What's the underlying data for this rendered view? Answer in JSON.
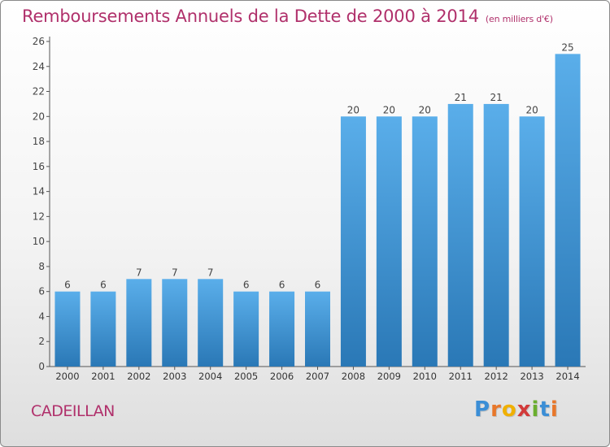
{
  "title": "Remboursements Annuels de la Dette de 2000 à 2014",
  "unit": "(en milliers d'€)",
  "commune": "CADEILLAN",
  "logo": {
    "letters": [
      "P",
      "r",
      "o",
      "x",
      "i",
      "t",
      "i"
    ],
    "colors": [
      "#3b8ed6",
      "#e8772a",
      "#f0b000",
      "#d23a3a",
      "#6aae2e",
      "#3b8ed6",
      "#e8772a"
    ]
  },
  "colors": {
    "accent": "#b0306b",
    "bar_top": "#5aaeea",
    "bar_bottom": "#2a78b6"
  },
  "chart_data": {
    "type": "bar",
    "categories": [
      "2000",
      "2001",
      "2002",
      "2003",
      "2004",
      "2005",
      "2006",
      "2007",
      "2008",
      "2009",
      "2010",
      "2011",
      "2012",
      "2013",
      "2014"
    ],
    "values": [
      6,
      6,
      7,
      7,
      7,
      6,
      6,
      6,
      20,
      20,
      20,
      21,
      21,
      20,
      25
    ],
    "ylim": [
      0,
      26
    ],
    "yticks": [
      0,
      2,
      4,
      6,
      8,
      10,
      12,
      14,
      16,
      18,
      20,
      22,
      24,
      26
    ],
    "grid": false,
    "data_labels": true
  }
}
